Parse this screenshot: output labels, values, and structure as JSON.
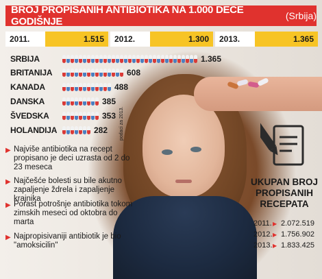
{
  "title": "BROJ PROPISANIH ANTIBIOTIKA NA 1.000 DECE GODIŠNJE",
  "subtitle": "(Srbija)",
  "years": [
    {
      "year": "2011.",
      "value": "1.515"
    },
    {
      "year": "2012.",
      "value": "1.300"
    },
    {
      "year": "2013.",
      "value": "1.365"
    }
  ],
  "side_note": "podaci za 2013.",
  "chart_data": {
    "type": "bar",
    "title": "BROJ PROPISANIH ANTIBIOTIKA NA 1.000 DECE GODIŠNJE",
    "categories": [
      "SRBIJA",
      "BRITANIJA",
      "KANADA",
      "DANSKA",
      "ŠVEDSKA",
      "HOLANDIJA"
    ],
    "values": [
      1365,
      608,
      488,
      385,
      353,
      282
    ],
    "value_labels": [
      "1.365",
      "608",
      "488",
      "385",
      "353",
      "282"
    ],
    "colors": {
      "cap_top": "#f2f2f2",
      "red": "#d93a37",
      "blue": "#4c7fc0"
    }
  },
  "bullets": [
    "Najviše antibiotika na recept propisano je deci uzrasta od 2 do 23 meseca",
    "Najčešće bolesti su bile akutno zapaljenje ždrela i zapaljenje krajnika",
    "Porast potrošnje antibiotika tokom zimskih meseci od oktobra do marta",
    "Najpropisivaniji antibiotik je bio \"amoksicilin\""
  ],
  "totals": {
    "heading_lines": [
      "UKUPAN BROJ",
      "PROPISANIH",
      "RECEPATA"
    ],
    "rows": [
      {
        "year": "2011.",
        "value": "2.072.519"
      },
      {
        "year": "2012.",
        "value": "1.756.902"
      },
      {
        "year": "2013.",
        "value": "1.833.425"
      }
    ]
  },
  "accent": "#e0322e",
  "year_fill": "#f7c425"
}
